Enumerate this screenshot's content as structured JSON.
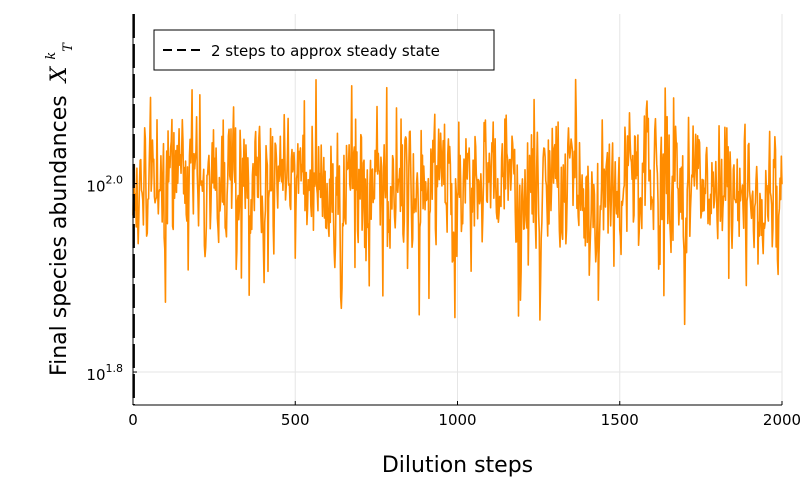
{
  "chart_data": {
    "type": "line",
    "title": "",
    "xlabel": "Dilution steps",
    "ylabel": "Final species abundances",
    "ylabel_math": "X",
    "ylabel_math_sup": "k",
    "ylabel_math_sub": "T",
    "yscale": "log10",
    "xlim": [
      0,
      2000
    ],
    "ylim_log10": [
      1.765,
      2.18
    ],
    "xticks": [
      {
        "value": 0,
        "label": "0"
      },
      {
        "value": 500,
        "label": "500"
      },
      {
        "value": 1000,
        "label": "1000"
      },
      {
        "value": 1500,
        "label": "1500"
      },
      {
        "value": 2000,
        "label": "2000"
      }
    ],
    "yticks": [
      {
        "log10": 1.8,
        "base": "10",
        "exp": "1.8"
      },
      {
        "log10": 2.0,
        "base": "10",
        "exp": "2.0"
      }
    ],
    "grid": true,
    "legend_position": "top-left",
    "series": [
      {
        "name": "2 steps to approx steady state",
        "kind": "vline",
        "style": "dashed",
        "color": "#000000",
        "x": 2
      },
      {
        "kind": "fluctuating-trace",
        "color": "#ff8c00",
        "x_start": 0,
        "x_end": 2000,
        "step": 2,
        "center_log10": 2.0,
        "typical_min_log10": 1.85,
        "typical_max_log10": 2.12,
        "extreme_min_log10": 1.81,
        "extreme_max_log10": 2.16
      }
    ]
  }
}
